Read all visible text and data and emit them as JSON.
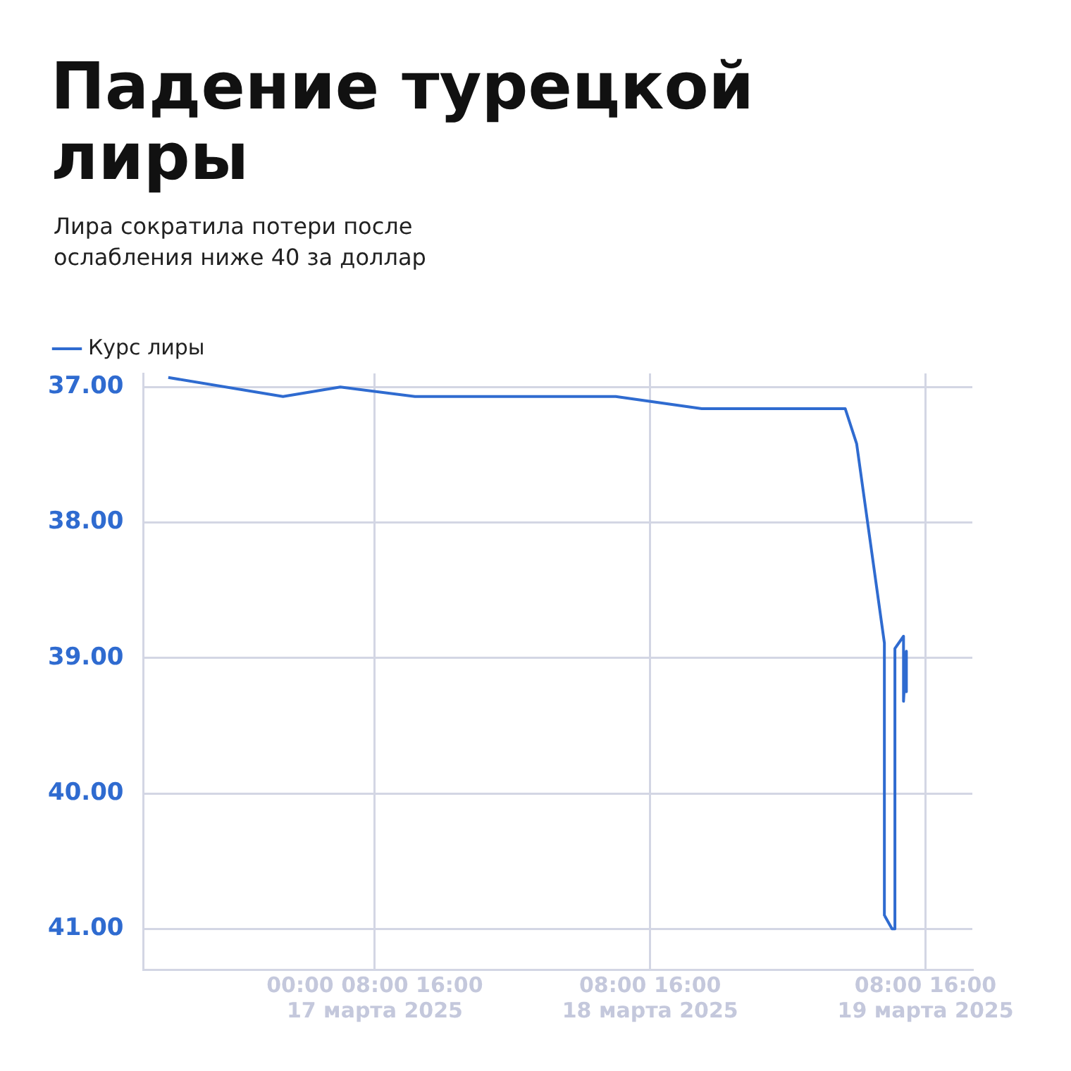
{
  "chart_data": {
    "type": "line",
    "title": "Падение турецкой лиры",
    "subtitle": "Лира сократила потери после ослабления ниже 40 за доллар",
    "series": [
      {
        "name": "Курс лиры",
        "color": "#2f6bd0",
        "x": [
          "2025-03-16T14:00",
          "2025-03-17T00:00",
          "2025-03-17T05:00",
          "2025-03-17T11:30",
          "2025-03-18T05:00",
          "2025-03-18T12:30",
          "2025-03-19T01:00",
          "2025-03-19T02:00",
          "2025-03-19T04:25",
          "2025-03-19T04:25",
          "2025-03-19T05:05",
          "2025-03-19T05:20",
          "2025-03-19T05:20",
          "2025-03-19T06:05",
          "2025-03-19T06:05",
          "2025-03-19T06:20",
          "2025-03-19T06:20"
        ],
        "values": [
          36.93,
          37.07,
          37.0,
          37.07,
          37.07,
          37.16,
          37.16,
          37.42,
          38.89,
          40.9,
          41.0,
          41.0,
          38.93,
          38.84,
          39.32,
          38.95,
          39.25
        ]
      }
    ],
    "xlim": [
      "2025-03-16T11:50",
      "2025-03-19T12:05"
    ],
    "xticks": [
      {
        "value": "2025-03-17T08:00",
        "label": "00:00 08:00 16:00\n17 марта 2025"
      },
      {
        "value": "2025-03-18T08:00",
        "label": "08:00 16:00\n18 марта 2025"
      },
      {
        "value": "2025-03-19T08:00",
        "label": "08:00 16:00\n19 марта 2025"
      }
    ],
    "ylim": [
      41.3,
      36.9
    ],
    "yticks": [
      {
        "value": 37,
        "label": "37.00"
      },
      {
        "value": 38,
        "label": "38.00"
      },
      {
        "value": 39,
        "label": "39.00"
      },
      {
        "value": 40,
        "label": "40.00"
      },
      {
        "value": 41,
        "label": "41.00"
      }
    ],
    "grid": true,
    "legend": "top left",
    "marker": "none",
    "line_style": "solid"
  }
}
